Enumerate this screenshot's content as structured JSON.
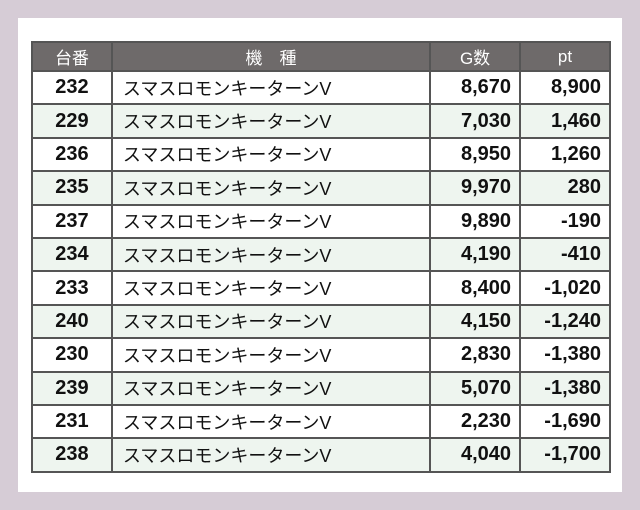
{
  "header": {
    "no": "台番",
    "name": "機　種",
    "games": "G数",
    "pt": "pt"
  },
  "rows": [
    {
      "no": "232",
      "name": "スマスロモンキーターンV",
      "games": "8,670",
      "pt": "8,900"
    },
    {
      "no": "229",
      "name": "スマスロモンキーターンV",
      "games": "7,030",
      "pt": "1,460"
    },
    {
      "no": "236",
      "name": "スマスロモンキーターンV",
      "games": "8,950",
      "pt": "1,260"
    },
    {
      "no": "235",
      "name": "スマスロモンキーターンV",
      "games": "9,970",
      "pt": "280"
    },
    {
      "no": "237",
      "name": "スマスロモンキーターンV",
      "games": "9,890",
      "pt": "-190"
    },
    {
      "no": "234",
      "name": "スマスロモンキーターンV",
      "games": "4,190",
      "pt": "-410"
    },
    {
      "no": "233",
      "name": "スマスロモンキーターンV",
      "games": "8,400",
      "pt": "-1,020"
    },
    {
      "no": "240",
      "name": "スマスロモンキーターンV",
      "games": "4,150",
      "pt": "-1,240"
    },
    {
      "no": "230",
      "name": "スマスロモンキーターンV",
      "games": "2,830",
      "pt": "-1,380"
    },
    {
      "no": "239",
      "name": "スマスロモンキーターンV",
      "games": "5,070",
      "pt": "-1,380"
    },
    {
      "no": "231",
      "name": "スマスロモンキーターンV",
      "games": "2,230",
      "pt": "-1,690"
    },
    {
      "no": "238",
      "name": "スマスロモンキーターンV",
      "games": "4,040",
      "pt": "-1,700"
    }
  ],
  "colors": {
    "background": "#d6ccd6",
    "header": "#6e6a6a",
    "alt_row": "#eef5ef"
  }
}
